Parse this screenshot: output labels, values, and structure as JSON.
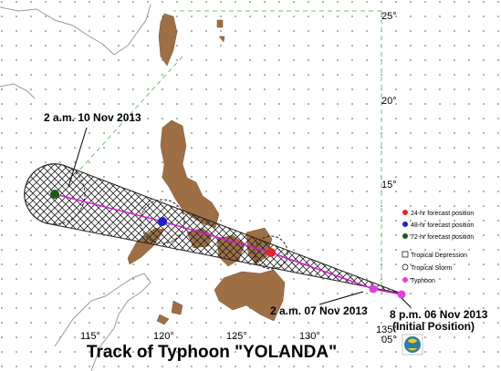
{
  "title": "Track of  Typhoon \"YOLANDA\"",
  "latitude_labels": [
    "25°",
    "20°",
    "15°",
    "05°"
  ],
  "longitude_labels": [
    "115°",
    "120°",
    "125°",
    "130°",
    "135°"
  ],
  "annotations": [
    "2 a.m. 10 Nov 2013",
    "2 a.m. 07 Nov 2013",
    "8 p.m. 06 Nov 2013",
    "(Initial Position)"
  ],
  "legend": [
    "24-hr forecast position",
    "48-hr forecast position",
    "72-hr forecast position",
    "Tropical Depression",
    "Tropical Storm",
    "Typhoon"
  ]
}
